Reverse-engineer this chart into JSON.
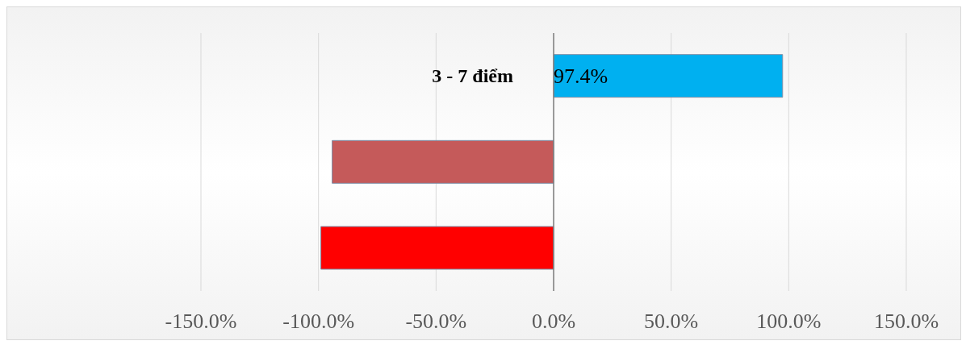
{
  "chart_data": {
    "type": "bar",
    "orientation": "horizontal",
    "categories": [
      "3 - 7 điểm",
      null,
      null
    ],
    "values": [
      97.4,
      -94.2,
      -99.0
    ],
    "colors": [
      "#00b0f0",
      "#c55a5a",
      "#ff0000"
    ],
    "value_labels": [
      "97.4%",
      null,
      null
    ],
    "xlim": [
      -150,
      150
    ],
    "xticks": [
      {
        "value": -150,
        "label": "-150.0%"
      },
      {
        "value": -100,
        "label": "-100.0%"
      },
      {
        "value": -50,
        "label": "-50.0%"
      },
      {
        "value": 0,
        "label": "0.0%"
      },
      {
        "value": 50,
        "label": "50.0%"
      },
      {
        "value": 100,
        "label": "100.0%"
      },
      {
        "value": 150,
        "label": "150.0%"
      }
    ],
    "ref_lines": [
      {
        "axis": "x",
        "value": 0,
        "color": "#7f7f7f"
      }
    ],
    "grid": "x"
  }
}
